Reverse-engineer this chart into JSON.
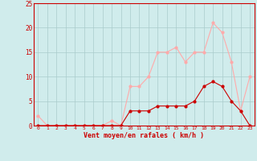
{
  "x": [
    0,
    1,
    2,
    3,
    4,
    5,
    6,
    7,
    8,
    9,
    10,
    11,
    12,
    13,
    14,
    15,
    16,
    17,
    18,
    19,
    20,
    21,
    22,
    23
  ],
  "vent_moyen": [
    0,
    0,
    0,
    0,
    0,
    0,
    0,
    0,
    0,
    0,
    3,
    3,
    3,
    4,
    4,
    4,
    4,
    5,
    8,
    9,
    8,
    5,
    3,
    0
  ],
  "rafales": [
    2,
    0,
    0,
    0,
    0,
    0,
    0,
    0,
    1,
    0,
    8,
    8,
    10,
    15,
    15,
    16,
    13,
    15,
    15,
    21,
    19,
    13,
    3,
    10
  ],
  "color_moyen": "#cc0000",
  "color_rafales": "#ffaaaa",
  "bg_color": "#d0ecec",
  "grid_color": "#aacccc",
  "xlabel": "Vent moyen/en rafales ( km/h )",
  "xlabel_color": "#cc0000",
  "ylim": [
    0,
    25
  ],
  "xlim": [
    -0.5,
    23.5
  ],
  "yticks": [
    0,
    5,
    10,
    15,
    20,
    25
  ],
  "xticks": [
    0,
    1,
    2,
    3,
    4,
    5,
    6,
    7,
    8,
    9,
    10,
    11,
    12,
    13,
    14,
    15,
    16,
    17,
    18,
    19,
    20,
    21,
    22,
    23
  ]
}
